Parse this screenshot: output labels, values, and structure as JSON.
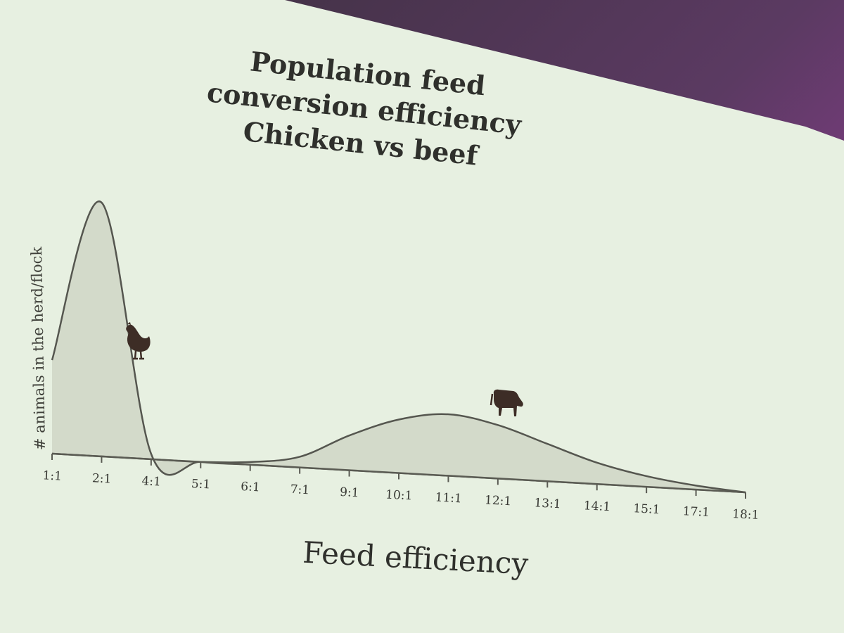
{
  "chart_data": {
    "type": "area",
    "title": [
      "Population feed",
      "conversion efficiency",
      "Chicken vs beef"
    ],
    "xlabel": "Feed efficiency",
    "ylabel": "# animals in the herd/flock",
    "categories": [
      "1:1",
      "2:1",
      "4:1",
      "5:1",
      "6:1",
      "7:1",
      "9:1",
      "10:1",
      "11:1",
      "12:1",
      "13:1",
      "14:1",
      "15:1",
      "17:1",
      "18:1"
    ],
    "series": [
      {
        "icon": "chicken-icon",
        "values": [
          0.35,
          0.95,
          0.02,
          0.0,
          0.0,
          0.0,
          0.0,
          0.0,
          0.0,
          0.0,
          0.0,
          0.0,
          0.0,
          0.0,
          0.0
        ]
      },
      {
        "icon": "cow-icon",
        "values": [
          0.0,
          0.0,
          0.0,
          0.0,
          0.01,
          0.04,
          0.13,
          0.2,
          0.23,
          0.2,
          0.14,
          0.08,
          0.04,
          0.015,
          0.0
        ]
      }
    ],
    "ylim": [
      0,
      1
    ],
    "grid": false,
    "colors": {
      "fill": "#cfd6c6",
      "stroke": "#55564f",
      "background": "#e6f0df"
    }
  }
}
